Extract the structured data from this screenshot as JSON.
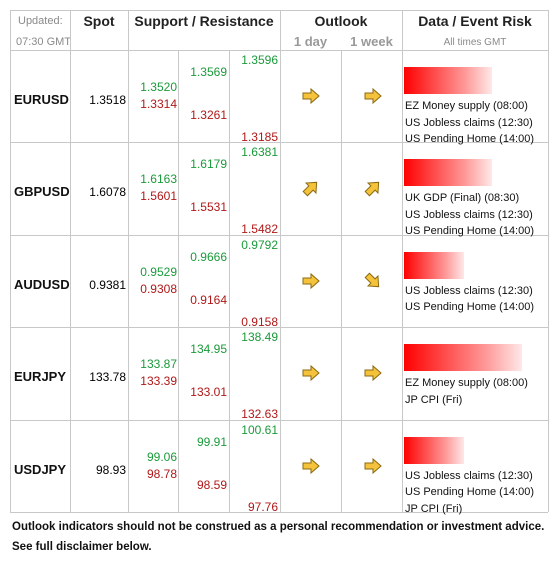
{
  "header": {
    "updated": "Updated:",
    "time": "07:30 GMT",
    "spot": "Spot",
    "support_resistance": "Support / Resistance",
    "outlook": "Outlook",
    "day": "1 day",
    "week": "1 week",
    "event_risk": "Data / Event Risk",
    "all_times": "All times GMT"
  },
  "rows": [
    {
      "pair": "EURUSD",
      "spot": "1.3518",
      "resistance": [
        "1.3520",
        "1.3569",
        "1.3596"
      ],
      "support": [
        "1.3314",
        "1.3261",
        "1.3185"
      ],
      "events": [
        "EZ Money supply (08:00)",
        "US Jobless claims (12:30)",
        "US Pending Home (14:00)"
      ]
    },
    {
      "pair": "GBPUSD",
      "spot": "1.6078",
      "resistance": [
        "1.6163",
        "1.6179",
        "1.6381"
      ],
      "support": [
        "1.5601",
        "1.5531",
        "1.5482"
      ],
      "events": [
        "UK GDP (Final) (08:30)",
        "US Jobless claims (12:30)",
        "US Pending Home (14:00)"
      ]
    },
    {
      "pair": "AUDUSD",
      "spot": "0.9381",
      "resistance": [
        "0.9529",
        "0.9666",
        "0.9792"
      ],
      "support": [
        "0.9308",
        "0.9164",
        "0.9158"
      ],
      "events": [
        "US Jobless claims (12:30)",
        "US Pending Home (14:00)"
      ]
    },
    {
      "pair": "EURJPY",
      "spot": "133.78",
      "resistance": [
        "133.87",
        "134.95",
        "138.49"
      ],
      "support": [
        "133.39",
        "133.01",
        "132.63"
      ],
      "events": [
        "EZ Money supply (08:00)",
        "JP CPI (Fri)"
      ]
    },
    {
      "pair": "USDJPY",
      "spot": "98.93",
      "resistance": [
        "99.06",
        "99.91",
        "100.61"
      ],
      "support": [
        "98.78",
        "98.59",
        "97.76"
      ],
      "events": [
        "US Jobless claims (12:30)",
        "US Pending Home (14:00)",
        "JP CPI (Fri)"
      ]
    }
  ],
  "footer": [
    "Outlook indicators should not be construed as a personal recommendation or investment advice.",
    "See full disclaimer below."
  ]
}
